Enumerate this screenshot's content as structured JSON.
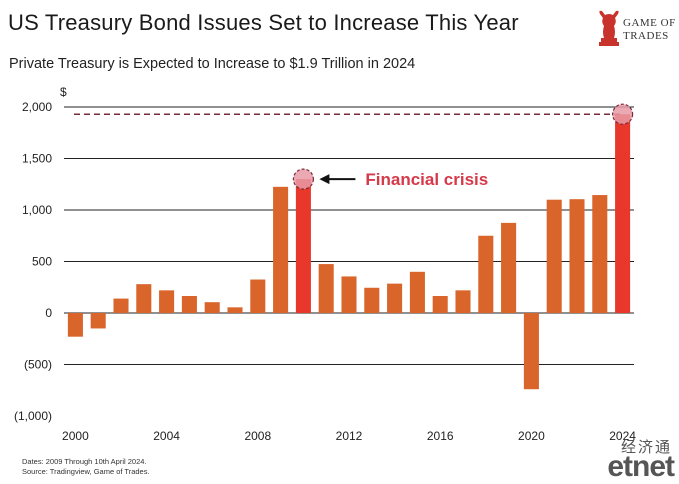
{
  "title": "US Treasury Bond Issues Set to Increase This Year",
  "subtitle": "Private Treasury is Expected to Increase to $1.9 Trillion in 2024",
  "logo": {
    "line1": "GAME OF",
    "line2": "TRADES",
    "icon": "bull-chess-knight-icon"
  },
  "notes": {
    "line1": "Dates: 2009 Through 10th April 2024.",
    "line2": "Source: Tradingview, Game of Trades."
  },
  "watermark": {
    "chinese": "经济通",
    "latin": "etnet"
  },
  "colors": {
    "bar": "#d9652b",
    "highlight": "#e8382b",
    "dashed_line": "#7a2b3a",
    "annotation": "#d63a4a",
    "marker": "#e79aa6"
  },
  "chart_data": {
    "type": "bar",
    "ylabel": "$",
    "ylim": [
      -1000,
      2000
    ],
    "yticks": [
      2000,
      1500,
      1000,
      500,
      0,
      -500,
      -1000
    ],
    "ytick_labels": [
      "2,000",
      "1,500",
      "1,000",
      "500",
      "0",
      "(500)",
      "(1,000)"
    ],
    "xticks": [
      2000,
      2004,
      2008,
      2012,
      2016,
      2020,
      2024
    ],
    "xtick_labels": [
      "2000",
      "2004",
      "2008",
      "2012",
      "2016",
      "2020",
      "2024"
    ],
    "x": [
      2000,
      2001,
      2002,
      2003,
      2004,
      2005,
      2006,
      2007,
      2008,
      2009,
      2010,
      2011,
      2012,
      2013,
      2014,
      2015,
      2016,
      2017,
      2018,
      2019,
      2020,
      2021,
      2022,
      2023,
      2024
    ],
    "values": [
      -230,
      -150,
      140,
      280,
      220,
      165,
      105,
      55,
      325,
      1225,
      1300,
      475,
      355,
      245,
      285,
      400,
      165,
      220,
      750,
      875,
      -740,
      1100,
      1105,
      1145,
      1930
    ],
    "highlighted_years": [
      2010,
      2024
    ],
    "reference_line": 1930,
    "annotation": {
      "text": "Financial crisis",
      "year": 2010,
      "value": 1300
    },
    "grid": true
  }
}
